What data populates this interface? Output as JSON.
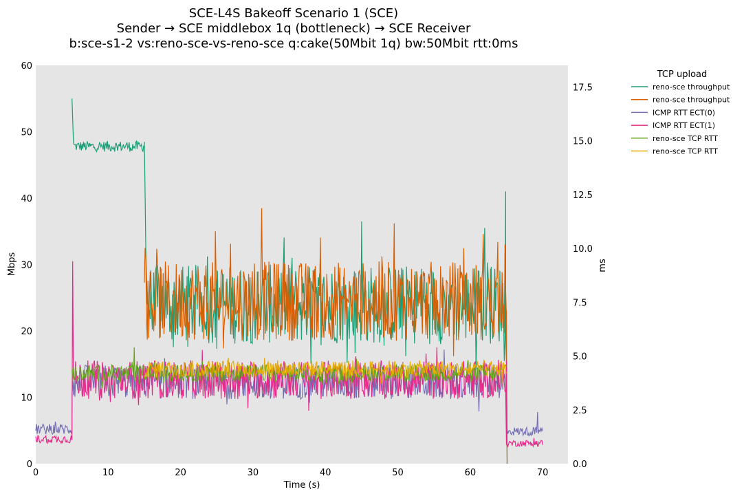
{
  "chart_data": {
    "type": "line",
    "title_lines": [
      "SCE-L4S Bakeoff Scenario 1 (SCE)",
      "Sender → SCE middlebox 1q (bottleneck) → SCE Receiver",
      "b:sce-s1-2 vs:reno-sce-vs-reno-sce q:cake(50Mbit 1q) bw:50Mbit rtt:0ms"
    ],
    "xlabel": "Time (s)",
    "ylabel": "Mbps",
    "y2label": "ms",
    "xlim": [
      0,
      73.5
    ],
    "ylim": [
      0,
      60
    ],
    "y2lim": [
      0,
      18.5
    ],
    "xticks": [
      0,
      10,
      20,
      30,
      40,
      50,
      60,
      70
    ],
    "yticks": [
      0,
      10,
      20,
      30,
      40,
      50,
      60
    ],
    "y2ticks": [
      "0.0",
      "2.5",
      "5.0",
      "7.5",
      "10.0",
      "12.5",
      "15.0",
      "17.5"
    ],
    "legend_title": "TCP upload",
    "legend_position": "outside top-right",
    "sample_interval_s": 0.1,
    "series": [
      {
        "name": "reno-sce throughput",
        "axis": "left",
        "color": "#1b9e77",
        "segments": [
          {
            "t_start": 5.0,
            "t_end": 5.3,
            "points": [
              [
                5.0,
                55.0
              ],
              [
                5.2,
                48.5
              ],
              [
                5.3,
                48.0
              ]
            ]
          },
          {
            "t_start": 5.3,
            "t_end": 15.0,
            "level": 47.8,
            "jitter": 0.8
          },
          {
            "t_start": 15.0,
            "t_end": 15.5,
            "points": [
              [
                15.0,
                48.5
              ],
              [
                15.2,
                32.0
              ],
              [
                15.4,
                24.0
              ]
            ]
          },
          {
            "t_start": 15.5,
            "t_end": 65.0,
            "level": 24.0,
            "jitter": 6.0,
            "spikes": [
              [
                35.4,
                31.0
              ],
              [
                45.0,
                36.5
              ],
              [
                62.0,
                35.5
              ]
            ]
          },
          {
            "t_start": 65.0,
            "t_end": 65.2,
            "points": [
              [
                64.9,
                41.0
              ],
              [
                65.1,
                0.0
              ]
            ]
          }
        ]
      },
      {
        "name": "reno-sce throughput",
        "axis": "left",
        "color": "#d95f02",
        "segments": [
          {
            "t_start": 15.0,
            "t_end": 65.0,
            "level": 24.5,
            "jitter": 6.0,
            "spikes": [
              [
                15.1,
                32.5
              ],
              [
                24.8,
                35.0
              ],
              [
                31.2,
                38.5
              ],
              [
                49.5,
                36.2
              ],
              [
                61.8,
                34.6
              ],
              [
                64.8,
                33.0
              ]
            ]
          },
          {
            "t_start": 65.0,
            "t_end": 65.2,
            "points": [
              [
                65.0,
                22.0
              ],
              [
                65.1,
                0.0
              ]
            ]
          }
        ]
      },
      {
        "name": "ICMP RTT ECT(0)",
        "axis": "right",
        "color": "#7570b3",
        "segments": [
          {
            "t_start": 0.0,
            "t_end": 5.0,
            "level": 1.6,
            "jitter": 0.25
          },
          {
            "t_start": 5.0,
            "t_end": 65.0,
            "level": 3.8,
            "jitter": 0.8
          },
          {
            "t_start": 65.0,
            "t_end": 70.0,
            "level": 1.5,
            "jitter": 0.2,
            "spikes": [
              [
                69.3,
                2.4
              ]
            ]
          }
        ]
      },
      {
        "name": "ICMP RTT ECT(1)",
        "axis": "right",
        "color": "#e7298a",
        "segments": [
          {
            "t_start": 0.0,
            "t_end": 5.0,
            "level": 1.15,
            "jitter": 0.2
          },
          {
            "t_start": 5.0,
            "t_end": 5.2,
            "points": [
              [
                5.0,
                1.3
              ],
              [
                5.1,
                9.4
              ],
              [
                5.2,
                4.0
              ]
            ]
          },
          {
            "t_start": 5.2,
            "t_end": 65.0,
            "level": 3.9,
            "jitter": 0.9
          },
          {
            "t_start": 65.0,
            "t_end": 70.0,
            "level": 0.95,
            "jitter": 0.15
          }
        ]
      },
      {
        "name": "reno-sce TCP RTT",
        "axis": "right",
        "color": "#66a61e",
        "segments": [
          {
            "t_start": 5.0,
            "t_end": 65.0,
            "level": 4.2,
            "jitter": 0.4,
            "spikes": [
              [
                13.6,
                5.4
              ]
            ]
          }
        ]
      },
      {
        "name": "reno-sce TCP RTT",
        "axis": "right",
        "color": "#e6ab02",
        "segments": [
          {
            "t_start": 15.0,
            "t_end": 65.0,
            "level": 4.4,
            "jitter": 0.4
          }
        ]
      }
    ]
  }
}
